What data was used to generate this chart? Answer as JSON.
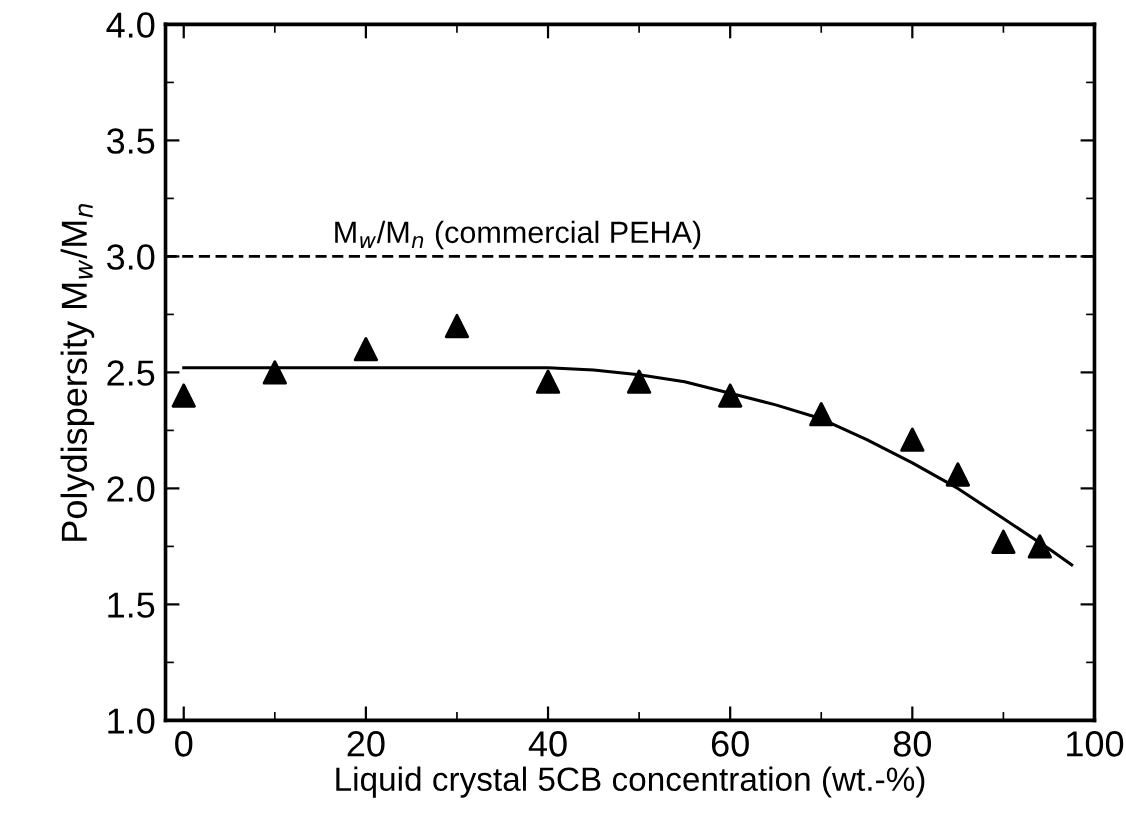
{
  "chart_data": {
    "type": "scatter",
    "xlabel": "Liquid crystal 5CB concentration (wt.-%)",
    "ylabel": "Polydispersity M$_{w}$/M$_{n}$",
    "xlim": [
      -2,
      100
    ],
    "xticks": [
      0,
      20,
      40,
      60,
      80,
      100
    ],
    "ylim": [
      1.0,
      4.0
    ],
    "yticks": [
      {
        "value": 1.0,
        "label": "1.0"
      },
      {
        "value": 1.5,
        "label": "1.5"
      },
      {
        "value": 2.0,
        "label": "2.0"
      },
      {
        "value": 2.5,
        "label": "2.5"
      },
      {
        "value": 3.0,
        "label": "3.0"
      },
      {
        "value": 3.5,
        "label": "3.5"
      },
      {
        "value": 4.0,
        "label": "4.0"
      }
    ],
    "grid": false,
    "legend": false,
    "ref_lines": [
      {
        "axis": "y",
        "value": 3.0,
        "label": "M$_{w}$/M$_{n}$ (commercial PEHA)",
        "color": "#000000",
        "line_style": "dashed"
      }
    ],
    "series": [
      {
        "color": "#000000",
        "marker": "triangle",
        "x": [
          0,
          10,
          20,
          30,
          40,
          50,
          60,
          70,
          80,
          85,
          90,
          94
        ],
        "values": [
          2.4,
          2.5,
          2.6,
          2.7,
          2.46,
          2.46,
          2.4,
          2.32,
          2.21,
          2.06,
          1.77,
          1.75
        ]
      },
      {
        "type": "line",
        "color": "#000000",
        "marker": "none",
        "line_style": "solid",
        "x": [
          0,
          40,
          45,
          50,
          55,
          60,
          65,
          70,
          75,
          80,
          85,
          90,
          95,
          97.5
        ],
        "values": [
          2.52,
          2.52,
          2.51,
          2.49,
          2.46,
          2.41,
          2.36,
          2.3,
          2.21,
          2.11,
          2.0,
          1.87,
          1.74,
          1.67
        ]
      }
    ]
  }
}
